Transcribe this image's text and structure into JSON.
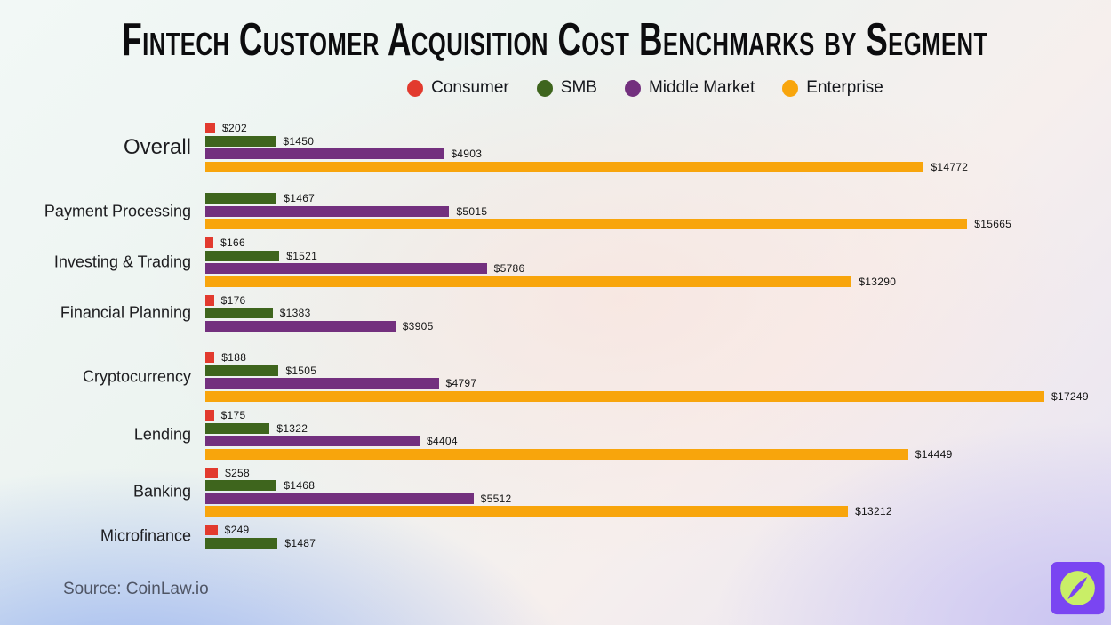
{
  "title": "Fintech Customer Acquisition Cost Benchmarks by Segment",
  "source": "Source: CoinLaw.io",
  "logo": {
    "square_color": "#7a45f2",
    "circle_color": "#c9ee67",
    "needle_color": "#7a45f2"
  },
  "chart_data": {
    "type": "bar",
    "orientation": "horizontal",
    "title": "Fintech Customer Acquisition Cost Benchmarks by Segment",
    "value_prefix": "$",
    "axis_max": 17249,
    "grid": false,
    "legend_position": "top",
    "categories": [
      "Overall",
      "Payment Processing",
      "Investing & Trading",
      "Financial Planning",
      "Cryptocurrency",
      "Lending",
      "Banking",
      "Microfinance"
    ],
    "series": [
      {
        "name": "Consumer",
        "color": "#e23a2e",
        "values": [
          202,
          null,
          166,
          176,
          188,
          175,
          258,
          249
        ]
      },
      {
        "name": "SMB",
        "color": "#3e651d",
        "values": [
          1450,
          1467,
          1521,
          1383,
          1505,
          1322,
          1468,
          1487
        ]
      },
      {
        "name": "Middle Market",
        "color": "#73307e",
        "values": [
          4903,
          5015,
          5786,
          3905,
          4797,
          4404,
          5512,
          null
        ]
      },
      {
        "name": "Enterprise",
        "color": "#f8a50c",
        "values": [
          14772,
          15665,
          13290,
          null,
          17249,
          14449,
          13212,
          null
        ]
      }
    ]
  }
}
